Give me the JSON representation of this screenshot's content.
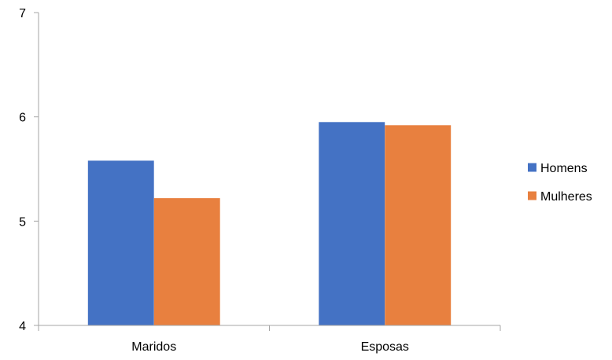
{
  "chart_data": {
    "type": "bar",
    "categories": [
      "Maridos",
      "Esposas"
    ],
    "series": [
      {
        "name": "Homens",
        "values": [
          5.58,
          5.95
        ],
        "color": "#4472C4"
      },
      {
        "name": "Mulheres",
        "values": [
          5.22,
          5.92
        ],
        "color": "#E8803F"
      }
    ],
    "ylim": [
      4,
      7
    ],
    "yticks": [
      "4",
      "5",
      "6",
      "7"
    ],
    "grid": false,
    "legend_position": "right",
    "axis_color": "#A6A6A6"
  }
}
